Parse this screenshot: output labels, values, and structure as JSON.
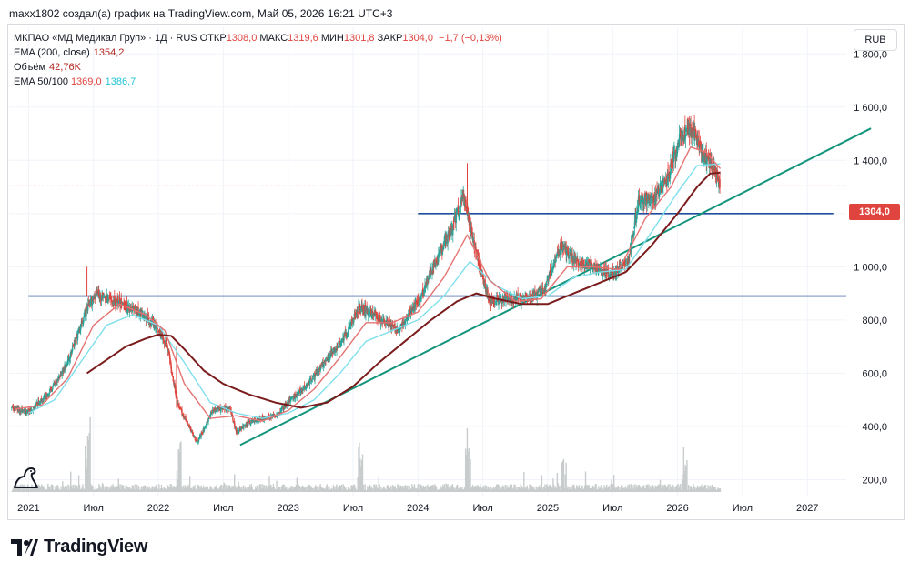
{
  "caption": "maxx1802 создал(а) график на TradingView.com, Май 05, 2026 16:21 UTC+3",
  "legend": {
    "symbol_line": "МКПАО «МД Медикал Груп» · 1Д · RUS",
    "open_label": "ОТКР",
    "open": "1308,0",
    "high_label": "МАКС",
    "high": "1319,6",
    "low_label": "МИН",
    "low": "1301,8",
    "close_label": "ЗАКР",
    "close": "1304,0",
    "change": "−1,7 (−0,13%)",
    "ema200_label": "EMA (200, close)",
    "ema200_value": "1354,2",
    "volume_label": "Объём",
    "volume_value": "42,76K",
    "ema50100_label": "EMA 50/100",
    "ema50_value": "1369,0",
    "ema100_value": "1386,7"
  },
  "currency": "RUB",
  "last_price_tag": "1304,0",
  "brand": "TradingView",
  "colors": {
    "up": "#26a69a",
    "down": "#e0443e",
    "ema50": "#e57373",
    "ema100": "#7fe0ec",
    "ema200": "#7b1c1c",
    "hline": "#1f4e9c",
    "trend": "#13957d",
    "volume": "#c8cccc"
  },
  "chart_data": {
    "type": "candlestick",
    "y_axis": {
      "min": 140,
      "max": 1900,
      "ticks": [
        200,
        400,
        600,
        800,
        1000,
        1200,
        1400,
        1600,
        1800
      ],
      "tick_labels": [
        "200,0",
        "400,0",
        "600,0",
        "800,0",
        "1 000,0",
        "1 200,0",
        "1 400,0",
        "1 600,0",
        "1 800,0"
      ]
    },
    "x_axis": {
      "start": 2020.85,
      "end": 2027.3,
      "ticks": [
        {
          "t": 2021.0,
          "label": "2021"
        },
        {
          "t": 2021.5,
          "label": "Июл"
        },
        {
          "t": 2022.0,
          "label": "2022"
        },
        {
          "t": 2022.5,
          "label": "Июл"
        },
        {
          "t": 2023.0,
          "label": "2023"
        },
        {
          "t": 2023.5,
          "label": "Июл"
        },
        {
          "t": 2024.0,
          "label": "2024"
        },
        {
          "t": 2024.5,
          "label": "Июл"
        },
        {
          "t": 2025.0,
          "label": "2025"
        },
        {
          "t": 2025.5,
          "label": "Июл"
        },
        {
          "t": 2026.0,
          "label": "2026"
        },
        {
          "t": 2026.5,
          "label": "Июл"
        },
        {
          "t": 2027.0,
          "label": "2027"
        }
      ]
    },
    "price_path": [
      [
        2020.87,
        470
      ],
      [
        2021.0,
        455
      ],
      [
        2021.15,
        520
      ],
      [
        2021.3,
        640
      ],
      [
        2021.45,
        840
      ],
      [
        2021.52,
        900
      ],
      [
        2021.6,
        880
      ],
      [
        2021.72,
        860
      ],
      [
        2021.85,
        830
      ],
      [
        2021.98,
        780
      ],
      [
        2022.07,
        700
      ],
      [
        2022.15,
        480
      ],
      [
        2022.3,
        340
      ],
      [
        2022.42,
        460
      ],
      [
        2022.55,
        470
      ],
      [
        2022.6,
        380
      ],
      [
        2022.72,
        420
      ],
      [
        2022.9,
        440
      ],
      [
        2023.0,
        490
      ],
      [
        2023.15,
        560
      ],
      [
        2023.3,
        650
      ],
      [
        2023.45,
        750
      ],
      [
        2023.55,
        850
      ],
      [
        2023.7,
        810
      ],
      [
        2023.85,
        760
      ],
      [
        2024.0,
        870
      ],
      [
        2024.12,
        1000
      ],
      [
        2024.25,
        1130
      ],
      [
        2024.35,
        1260
      ],
      [
        2024.45,
        1050
      ],
      [
        2024.55,
        870
      ],
      [
        2024.7,
        880
      ],
      [
        2024.85,
        880
      ],
      [
        2024.98,
        920
      ],
      [
        2025.1,
        1080
      ],
      [
        2025.22,
        1020
      ],
      [
        2025.35,
        1000
      ],
      [
        2025.5,
        970
      ],
      [
        2025.62,
        1020
      ],
      [
        2025.7,
        1250
      ],
      [
        2025.82,
        1260
      ],
      [
        2025.92,
        1330
      ],
      [
        2026.02,
        1490
      ],
      [
        2026.12,
        1520
      ],
      [
        2026.2,
        1420
      ],
      [
        2026.28,
        1370
      ],
      [
        2026.33,
        1304
      ]
    ],
    "ema50": [
      [
        2020.9,
        465
      ],
      [
        2021.1,
        480
      ],
      [
        2021.3,
        580
      ],
      [
        2021.5,
        780
      ],
      [
        2021.7,
        860
      ],
      [
        2021.9,
        820
      ],
      [
        2022.05,
        760
      ],
      [
        2022.2,
        560
      ],
      [
        2022.4,
        430
      ],
      [
        2022.6,
        440
      ],
      [
        2022.8,
        420
      ],
      [
        2023.0,
        460
      ],
      [
        2023.2,
        540
      ],
      [
        2023.4,
        660
      ],
      [
        2023.6,
        790
      ],
      [
        2023.8,
        790
      ],
      [
        2024.0,
        830
      ],
      [
        2024.2,
        960
      ],
      [
        2024.38,
        1120
      ],
      [
        2024.55,
        950
      ],
      [
        2024.75,
        870
      ],
      [
        2024.95,
        880
      ],
      [
        2025.15,
        1000
      ],
      [
        2025.35,
        1000
      ],
      [
        2025.55,
        990
      ],
      [
        2025.75,
        1180
      ],
      [
        2025.95,
        1300
      ],
      [
        2026.1,
        1450
      ],
      [
        2026.22,
        1430
      ],
      [
        2026.33,
        1369
      ]
    ],
    "ema100": [
      [
        2021.0,
        450
      ],
      [
        2021.2,
        500
      ],
      [
        2021.4,
        640
      ],
      [
        2021.6,
        780
      ],
      [
        2021.8,
        820
      ],
      [
        2022.0,
        780
      ],
      [
        2022.2,
        640
      ],
      [
        2022.4,
        490
      ],
      [
        2022.6,
        450
      ],
      [
        2022.8,
        430
      ],
      [
        2023.0,
        450
      ],
      [
        2023.2,
        500
      ],
      [
        2023.4,
        600
      ],
      [
        2023.6,
        720
      ],
      [
        2023.8,
        760
      ],
      [
        2024.0,
        800
      ],
      [
        2024.2,
        890
      ],
      [
        2024.4,
        1020
      ],
      [
        2024.6,
        930
      ],
      [
        2024.8,
        880
      ],
      [
        2025.0,
        890
      ],
      [
        2025.2,
        960
      ],
      [
        2025.4,
        980
      ],
      [
        2025.6,
        990
      ],
      [
        2025.8,
        1130
      ],
      [
        2026.0,
        1280
      ],
      [
        2026.15,
        1380
      ],
      [
        2026.33,
        1387
      ]
    ],
    "ema200": [
      [
        2021.45,
        600
      ],
      [
        2021.6,
        650
      ],
      [
        2021.75,
        700
      ],
      [
        2021.9,
        730
      ],
      [
        2022.0,
        745
      ],
      [
        2022.1,
        740
      ],
      [
        2022.2,
        690
      ],
      [
        2022.35,
        610
      ],
      [
        2022.5,
        560
      ],
      [
        2022.7,
        520
      ],
      [
        2022.9,
        490
      ],
      [
        2023.1,
        470
      ],
      [
        2023.3,
        490
      ],
      [
        2023.5,
        550
      ],
      [
        2023.7,
        640
      ],
      [
        2023.9,
        720
      ],
      [
        2024.1,
        800
      ],
      [
        2024.3,
        870
      ],
      [
        2024.45,
        900
      ],
      [
        2024.6,
        880
      ],
      [
        2024.8,
        860
      ],
      [
        2025.0,
        860
      ],
      [
        2025.2,
        900
      ],
      [
        2025.4,
        940
      ],
      [
        2025.6,
        980
      ],
      [
        2025.8,
        1080
      ],
      [
        2026.0,
        1200
      ],
      [
        2026.15,
        1300
      ],
      [
        2026.25,
        1350
      ],
      [
        2026.33,
        1354
      ]
    ],
    "hlines": [
      {
        "price": 890,
        "x_start": 2021.0,
        "x_end": 2027.3
      },
      {
        "price": 1200,
        "x_start": 2024.0,
        "x_end": 2027.2
      }
    ],
    "trendline": {
      "from": [
        2022.63,
        330
      ],
      "to": [
        2027.49,
        1520
      ]
    },
    "volume_spikes": [
      [
        2021.45,
        0.9
      ],
      [
        2022.15,
        0.6
      ],
      [
        2023.55,
        0.55
      ],
      [
        2024.38,
        1.0
      ],
      [
        2025.12,
        0.45
      ],
      [
        2026.05,
        0.35
      ]
    ]
  }
}
